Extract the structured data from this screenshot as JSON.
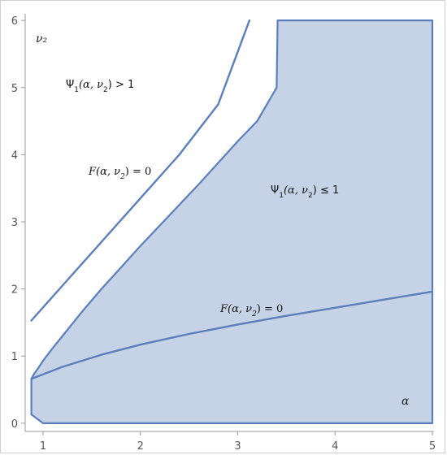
{
  "chart_data": {
    "type": "area",
    "xlabel": "α",
    "ylabel": "ν₂",
    "xlim": [
      0.85,
      5.0
    ],
    "ylim": [
      -0.05,
      6.05
    ],
    "x_ticks": [
      "1",
      "2",
      "3",
      "4",
      "5"
    ],
    "y_ticks": [
      "0",
      "1",
      "2",
      "3",
      "4",
      "5",
      "6"
    ],
    "x_tick_values": [
      1,
      2,
      3,
      4,
      5
    ],
    "y_tick_values": [
      0,
      1,
      2,
      3,
      4,
      5,
      6
    ],
    "grid": false,
    "colors": {
      "curve": "#5b7fbd",
      "fill": "#c6d3e6",
      "frame": "#cfcfcf"
    },
    "shaded_region": {
      "label_main": "Ψ",
      "label_sub": "1",
      "label_args": "(α, ν",
      "label_args_sub": "2",
      "label_tail": ") ≤ 1",
      "boundary": [
        [
          0.88,
          0.66
        ],
        [
          0.91,
          0.74
        ],
        [
          0.95,
          0.82
        ],
        [
          1.0,
          0.93
        ],
        [
          1.1,
          1.12
        ],
        [
          1.2,
          1.3
        ],
        [
          1.4,
          1.66
        ],
        [
          1.6,
          2.0
        ],
        [
          1.8,
          2.32
        ],
        [
          2.0,
          2.64
        ],
        [
          2.3,
          3.1
        ],
        [
          2.6,
          3.56
        ],
        [
          3.0,
          4.2
        ],
        [
          3.2,
          4.5
        ],
        [
          3.4,
          5.0
        ],
        [
          3.41,
          6.0
        ],
        [
          5.0,
          6.0
        ],
        [
          5.0,
          0.0
        ],
        [
          1.0,
          0.0
        ],
        [
          0.88,
          0.13
        ]
      ]
    },
    "unshaded_region": {
      "label_main": "Ψ",
      "label_sub": "1",
      "label_args": "(α, ν",
      "label_args_sub": "2",
      "label_tail": ") > 1"
    },
    "series": [
      {
        "points": [
          [
            0.88,
            1.53
          ],
          [
            1.2,
            2.05
          ],
          [
            1.6,
            2.7
          ],
          [
            2.0,
            3.35
          ],
          [
            2.4,
            4.0
          ],
          [
            2.8,
            4.75
          ],
          [
            3.12,
            6.0
          ]
        ]
      },
      {
        "points": [
          [
            0.88,
            0.66
          ],
          [
            1.2,
            0.84
          ],
          [
            1.6,
            1.02
          ],
          [
            2.0,
            1.17
          ],
          [
            2.5,
            1.33
          ],
          [
            3.0,
            1.47
          ],
          [
            3.5,
            1.6
          ],
          [
            4.0,
            1.72
          ],
          [
            4.5,
            1.84
          ],
          [
            5.0,
            1.96
          ]
        ]
      }
    ],
    "annotations": [
      {
        "id": "f-upper",
        "func": "F",
        "args": "(α, ν",
        "args_sub": "2",
        "tail": ") = 0"
      },
      {
        "id": "f-lower",
        "func": "F",
        "args": "(α, ν",
        "args_sub": "2",
        "tail": ") = 0"
      }
    ]
  }
}
